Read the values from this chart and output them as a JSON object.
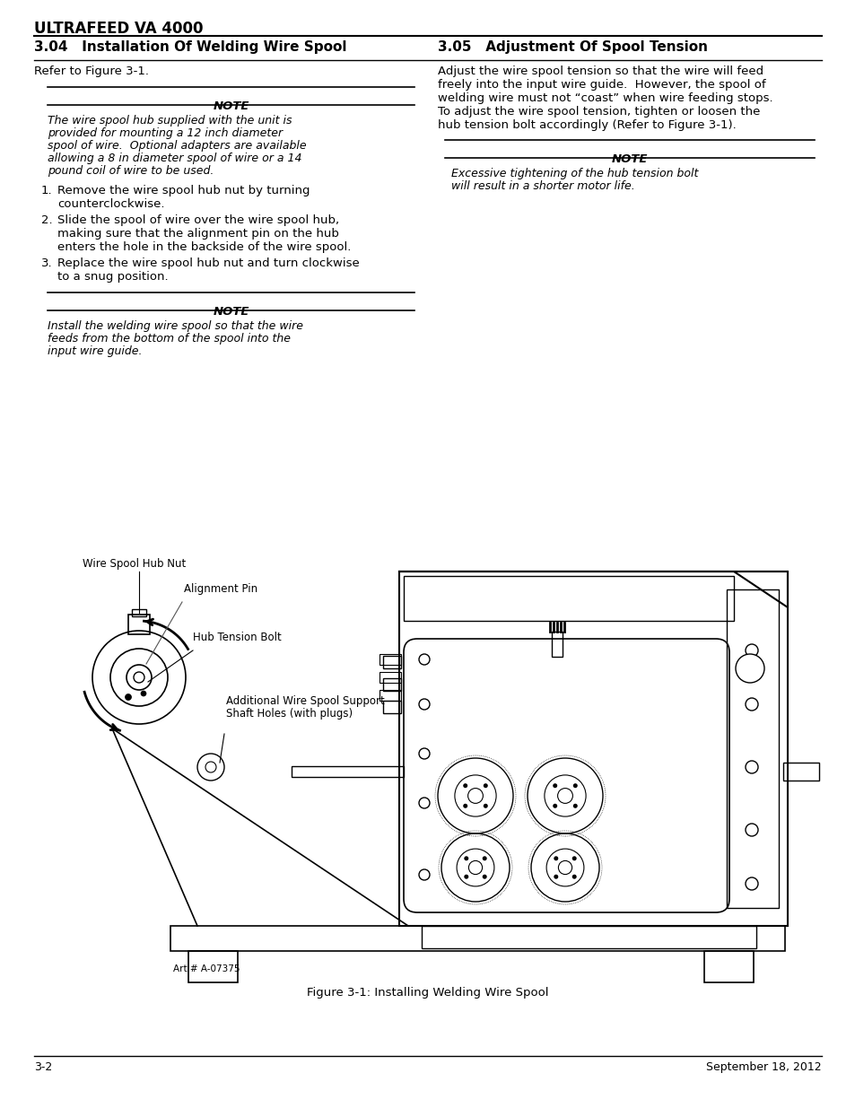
{
  "page_bg": "#ffffff",
  "header_title": "ULTRAFEED VA 4000",
  "section_left_title": "3.04   Installation Of Welding Wire Spool",
  "section_right_title": "3.05   Adjustment Of Spool Tension",
  "left_refer": "Refer to Figure 3-1.",
  "note1_header": "NOTE",
  "note1_text": "The wire spool hub supplied with the unit is\nprovided for mounting a 12 inch diameter\nspool of wire.  Optional adapters are available\nallowing a 8 in diameter spool of wire or a 14\npound coil of wire to be used.",
  "steps": [
    "Remove the wire spool hub nut by turning\ncounterclockwise.",
    "Slide the spool of wire over the wire spool hub,\nmaking sure that the alignment pin on the hub\nenters the hole in the backside of the wire spool.",
    "Replace the wire spool hub nut and turn clockwise\nto a snug position."
  ],
  "note2_header": "NOTE",
  "note2_text": "Install the welding wire spool so that the wire\nfeeds from the bottom of the spool into the\ninput wire guide.",
  "right_para": "Adjust the wire spool tension so that the wire will feed\nfreely into the input wire guide.  However, the spool of\nwelding wire must not “coast” when wire feeding stops.\nTo adjust the wire spool tension, tighten or loosen the\nhub tension bolt accordingly (Refer to Figure 3-1).",
  "note3_header": "NOTE",
  "note3_text": "Excessive tightening of the hub tension bolt\nwill result in a shorter motor life.",
  "fig_caption": "Figure 3-1: Installing Welding Wire Spool",
  "diagram_labels": [
    "Wire Spool Hub Nut",
    "Alignment Pin",
    "Hub Tension Bolt",
    "Additional Wire Spool Support\nShaft Holes (with plugs)"
  ],
  "art_number": "Art # A-07375",
  "footer_left": "3-2",
  "footer_right": "September 18, 2012",
  "text_color": "#000000",
  "font_size_body": 9.5,
  "font_size_note_header": 9.5,
  "font_size_footer": 9
}
